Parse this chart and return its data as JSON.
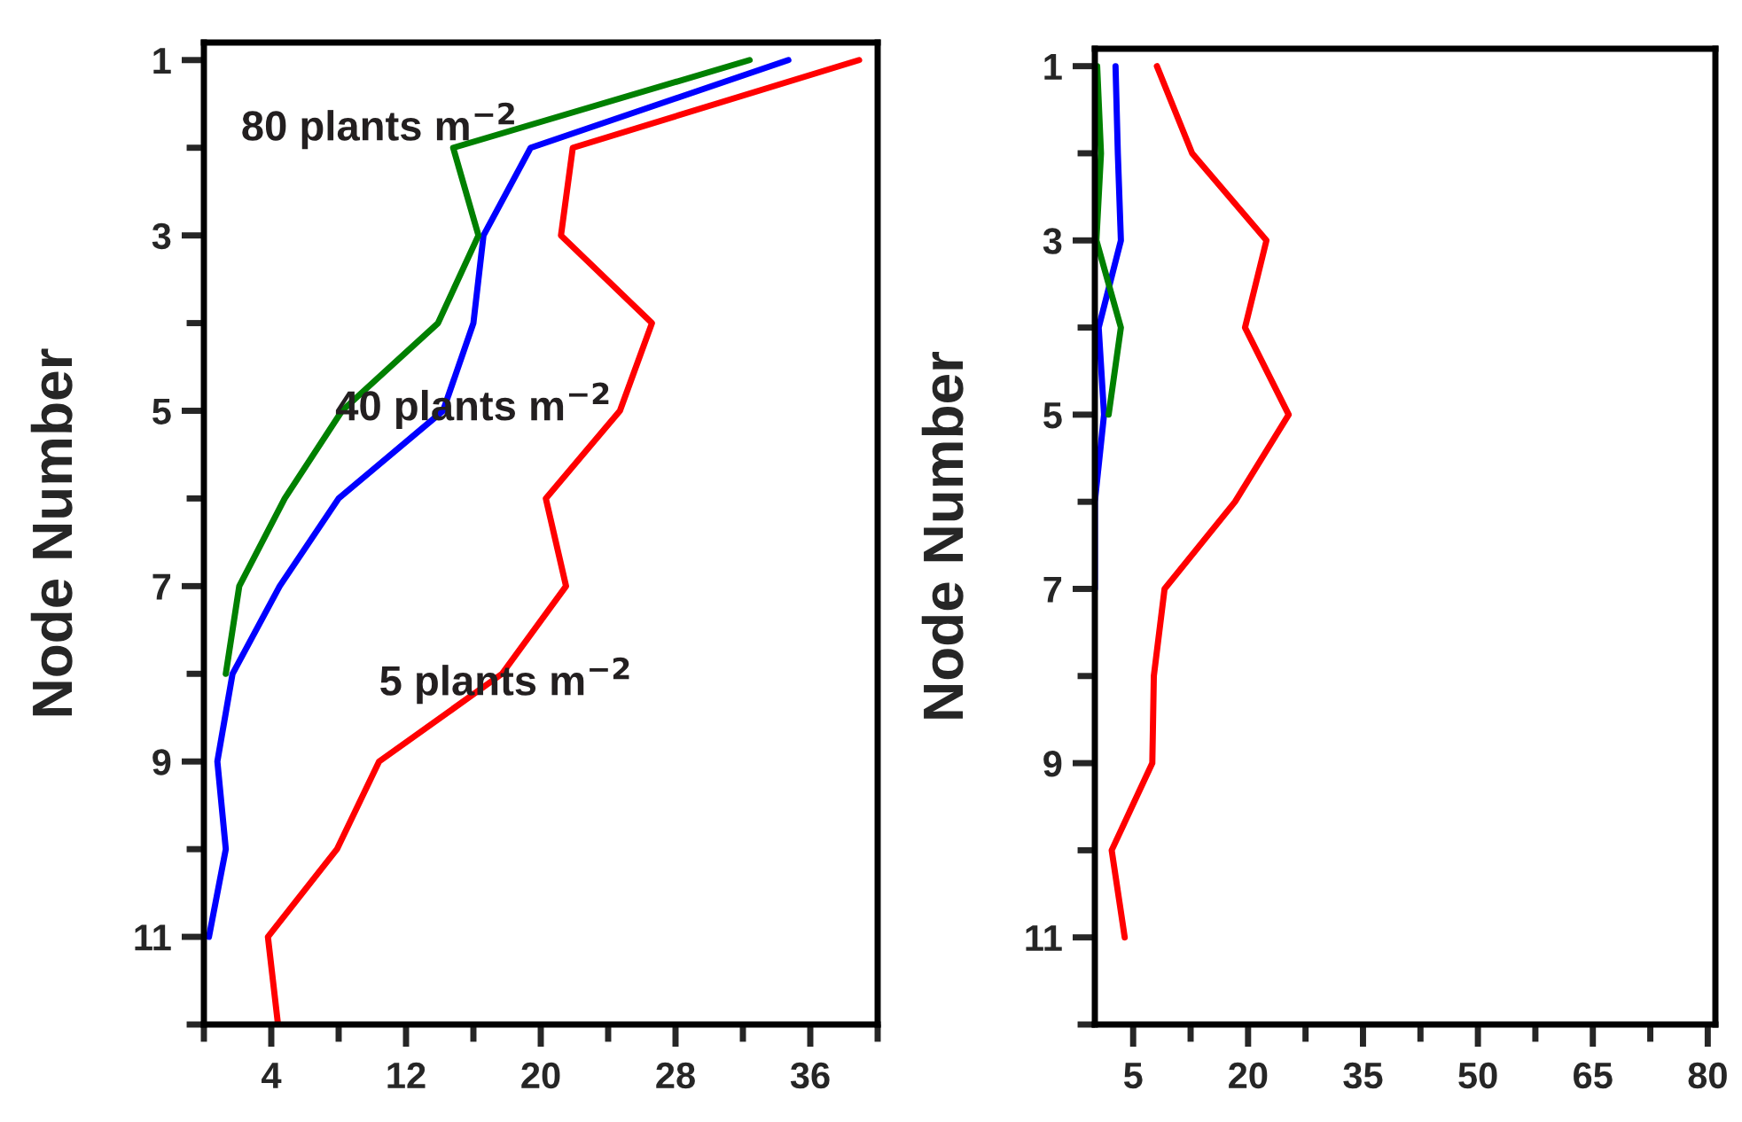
{
  "chart_data": [
    {
      "type": "line",
      "ylabel": "Node Number",
      "xlim": [
        0,
        40
      ],
      "ylim": [
        12,
        0.8
      ],
      "xticks": [
        4,
        12,
        20,
        28,
        36
      ],
      "yticks": [
        1,
        3,
        5,
        7,
        9,
        11
      ],
      "grid": false,
      "legend": false,
      "marker": "none",
      "line_style": "solid",
      "series": [
        {
          "color": "#ff0000",
          "x": [
            38.9,
            21.9,
            21.2,
            26.6,
            24.7,
            20.3,
            21.5,
            17.7,
            10.4,
            7.9,
            3.8,
            4.4
          ],
          "values": [
            1,
            2,
            3,
            4,
            5,
            6,
            7,
            8,
            9,
            10,
            11,
            12
          ]
        },
        {
          "color": "#0000ff",
          "x": [
            34.7,
            19.4,
            16.6,
            16.0,
            14.2,
            8.0,
            4.5,
            1.7,
            0.8,
            1.3,
            0.3
          ],
          "values": [
            1,
            2,
            3,
            4,
            5,
            6,
            7,
            8,
            9,
            10,
            11
          ]
        },
        {
          "color": "#008000",
          "x": [
            32.4,
            14.8,
            16.3,
            13.9,
            8.2,
            4.8,
            2.1,
            1.3
          ],
          "values": [
            1,
            2,
            3,
            4,
            5,
            6,
            7,
            8
          ]
        }
      ],
      "annotations": [
        "80 plants m$^{−2}$",
        "40 plants m$^{−2}$",
        "5 plants m$^{−2}$"
      ]
    },
    {
      "type": "line",
      "ylabel": "Node Number",
      "xlim": [
        0,
        81
      ],
      "ylim": [
        12,
        0.8
      ],
      "xticks": [
        5,
        20,
        35,
        50,
        65,
        80
      ],
      "yticks": [
        1,
        3,
        5,
        7,
        9,
        11
      ],
      "grid": false,
      "legend": false,
      "marker": "none",
      "line_style": "solid",
      "series": [
        {
          "color": "#ff0000",
          "x": [
            8.1,
            12.7,
            22.4,
            19.6,
            25.3,
            18.3,
            9.1,
            7.7,
            7.5,
            2.2,
            3.9
          ],
          "values": [
            1,
            2,
            3,
            4,
            5,
            6,
            7,
            8,
            9,
            10,
            11
          ]
        },
        {
          "color": "#0000ff",
          "x": [
            2.7,
            3.0,
            3.4,
            0.5,
            1.2,
            0,
            0
          ],
          "values": [
            1,
            2,
            3,
            4,
            5,
            6,
            7
          ]
        },
        {
          "color": "#008000",
          "x": [
            0.3,
            0.8,
            0.2,
            3.4,
            1.8
          ],
          "values": [
            1,
            2,
            3,
            4,
            5
          ]
        }
      ]
    }
  ]
}
